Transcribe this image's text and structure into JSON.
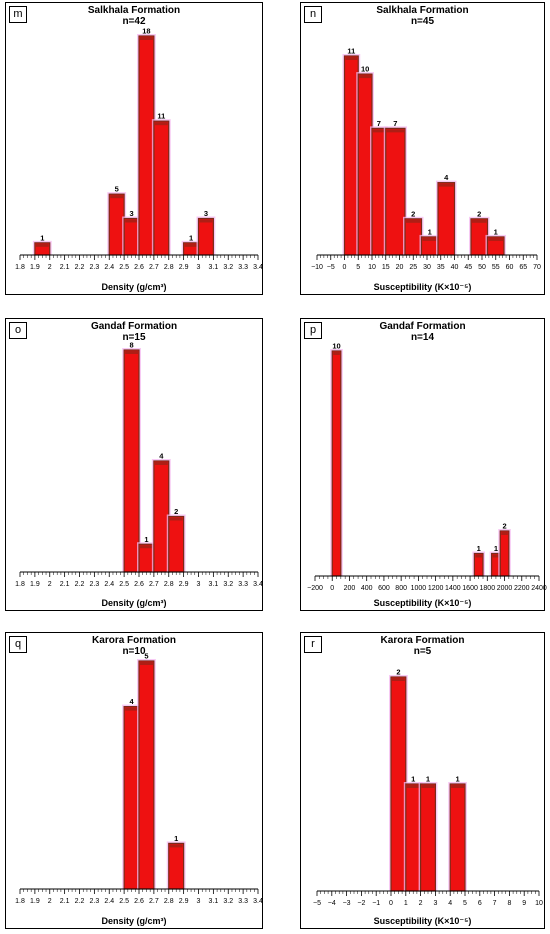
{
  "chart_data": [
    {
      "panel": "m",
      "type": "bar",
      "title": "Salkhala Formation",
      "subtitle": "n=42",
      "xlabel": "Density (g/cm³)",
      "ylabel": "",
      "xlim": [
        1.8,
        3.4
      ],
      "ylim": [
        0,
        18
      ],
      "ticks": [
        "1.8",
        "1.9",
        "2",
        "2.1",
        "2.2",
        "2.3",
        "2.4",
        "2.5",
        "2.6",
        "2.7",
        "2.8",
        "2.9",
        "3",
        "3.1",
        "3.2",
        "3.3",
        "3.4"
      ],
      "bars": [
        {
          "x0": 1.9,
          "x1": 2.0,
          "value": 1,
          "label": "1"
        },
        {
          "x0": 2.4,
          "x1": 2.5,
          "value": 5,
          "label": "5"
        },
        {
          "x0": 2.5,
          "x1": 2.6,
          "value": 3,
          "label": "3"
        },
        {
          "x0": 2.6,
          "x1": 2.7,
          "value": 18,
          "label": "18"
        },
        {
          "x0": 2.7,
          "x1": 2.8,
          "value": 11,
          "label": "11"
        },
        {
          "x0": 2.9,
          "x1": 3.0,
          "value": 1,
          "label": "1"
        },
        {
          "x0": 3.0,
          "x1": 3.1,
          "value": 3,
          "label": "3"
        }
      ]
    },
    {
      "panel": "n",
      "type": "bar",
      "title": "Salkhala Formation",
      "subtitle": "n=45",
      "xlabel": "Susceptibility (K×10⁻⁵)",
      "ylabel": "",
      "xlim": [
        -10,
        70
      ],
      "ylim": [
        0,
        11
      ],
      "ticks": [
        "−10",
        "−5",
        "0",
        "5",
        "10",
        "15",
        "20",
        "25",
        "30",
        "35",
        "40",
        "45",
        "50",
        "55",
        "60",
        "65",
        "70"
      ],
      "bars": [
        {
          "x0": 0,
          "x1": 5,
          "value": 11,
          "label": "11"
        },
        {
          "x0": 5,
          "x1": 10,
          "value": 10,
          "label": "10"
        },
        {
          "x0": 10,
          "x1": 15,
          "value": 7,
          "label": "7"
        },
        {
          "x0": 15,
          "x1": 22,
          "value": 7,
          "label": "7"
        },
        {
          "x0": 22,
          "x1": 28,
          "value": 2,
          "label": "2"
        },
        {
          "x0": 28,
          "x1": 34,
          "value": 1,
          "label": "1"
        },
        {
          "x0": 34,
          "x1": 40,
          "value": 4,
          "label": "4"
        },
        {
          "x0": 46,
          "x1": 52,
          "value": 2,
          "label": "2"
        },
        {
          "x0": 52,
          "x1": 58,
          "value": 1,
          "label": "1"
        }
      ]
    },
    {
      "panel": "o",
      "type": "bar",
      "title": "Gandaf Formation",
      "subtitle": "n=15",
      "xlabel": "Density (g/cm³)",
      "ylabel": "",
      "xlim": [
        1.8,
        3.4
      ],
      "ylim": [
        0,
        8
      ],
      "ticks": [
        "1.8",
        "1.9",
        "2",
        "2.1",
        "2.2",
        "2.3",
        "2.4",
        "2.5",
        "2.6",
        "2.7",
        "2.8",
        "2.9",
        "3",
        "3.1",
        "3.2",
        "3.3",
        "3.4"
      ],
      "bars": [
        {
          "x0": 2.5,
          "x1": 2.6,
          "value": 8,
          "label": "8"
        },
        {
          "x0": 2.6,
          "x1": 2.7,
          "value": 1,
          "label": "1"
        },
        {
          "x0": 2.7,
          "x1": 2.8,
          "value": 4,
          "label": "4"
        },
        {
          "x0": 2.8,
          "x1": 2.9,
          "value": 2,
          "label": "2"
        }
      ]
    },
    {
      "panel": "p",
      "type": "bar",
      "title": "Gandaf Formation",
      "subtitle": "n=14",
      "xlabel": "Susceptibility (K×10⁻⁵)",
      "ylabel": "",
      "xlim": [
        -200,
        2400
      ],
      "ylim": [
        0,
        10
      ],
      "ticks": [
        "−200",
        "0",
        "200",
        "400",
        "600",
        "800",
        "1000",
        "1200",
        "1400",
        "1600",
        "1800",
        "2000",
        "2200",
        "2400"
      ],
      "bars": [
        {
          "x0": 0,
          "x1": 100,
          "value": 10,
          "label": "10"
        },
        {
          "x0": 1650,
          "x1": 1750,
          "value": 1,
          "label": "1"
        },
        {
          "x0": 1850,
          "x1": 1950,
          "value": 1,
          "label": "1"
        },
        {
          "x0": 1950,
          "x1": 2050,
          "value": 2,
          "label": "2"
        }
      ]
    },
    {
      "panel": "q",
      "type": "bar",
      "title": "Karora Formation",
      "subtitle": "n=10",
      "xlabel": "Density (g/cm³)",
      "ylabel": "",
      "xlim": [
        1.8,
        3.4
      ],
      "ylim": [
        0,
        5
      ],
      "ticks": [
        "1.8",
        "1.9",
        "2",
        "2.1",
        "2.2",
        "2.3",
        "2.4",
        "2.5",
        "2.6",
        "2.7",
        "2.8",
        "2.9",
        "3",
        "3.1",
        "3.2",
        "3.3",
        "3.4"
      ],
      "bars": [
        {
          "x0": 2.5,
          "x1": 2.6,
          "value": 4,
          "label": "4"
        },
        {
          "x0": 2.6,
          "x1": 2.7,
          "value": 5,
          "label": "5"
        },
        {
          "x0": 2.8,
          "x1": 2.9,
          "value": 1,
          "label": "1"
        }
      ]
    },
    {
      "panel": "r",
      "type": "bar",
      "title": "Karora Formation",
      "subtitle": "n=5",
      "xlabel": "Susceptibility (K×10⁻⁵)",
      "ylabel": "",
      "xlim": [
        -5,
        10
      ],
      "ylim": [
        0,
        2
      ],
      "ticks": [
        "−5",
        "−4",
        "−3",
        "−2",
        "−1",
        "0",
        "1",
        "2",
        "3",
        "4",
        "5",
        "6",
        "7",
        "8",
        "9",
        "10"
      ],
      "bars": [
        {
          "x0": 0,
          "x1": 1,
          "value": 2,
          "label": "2"
        },
        {
          "x0": 1,
          "x1": 2,
          "value": 1,
          "label": "1"
        },
        {
          "x0": 2,
          "x1": 3,
          "value": 1,
          "label": "1"
        },
        {
          "x0": 4,
          "x1": 5,
          "value": 1,
          "label": "1"
        }
      ]
    }
  ],
  "colors": {
    "bar_fill": "#ee1111",
    "bar_stroke": "#7a2a1a",
    "halo": "#f4b8f0"
  }
}
